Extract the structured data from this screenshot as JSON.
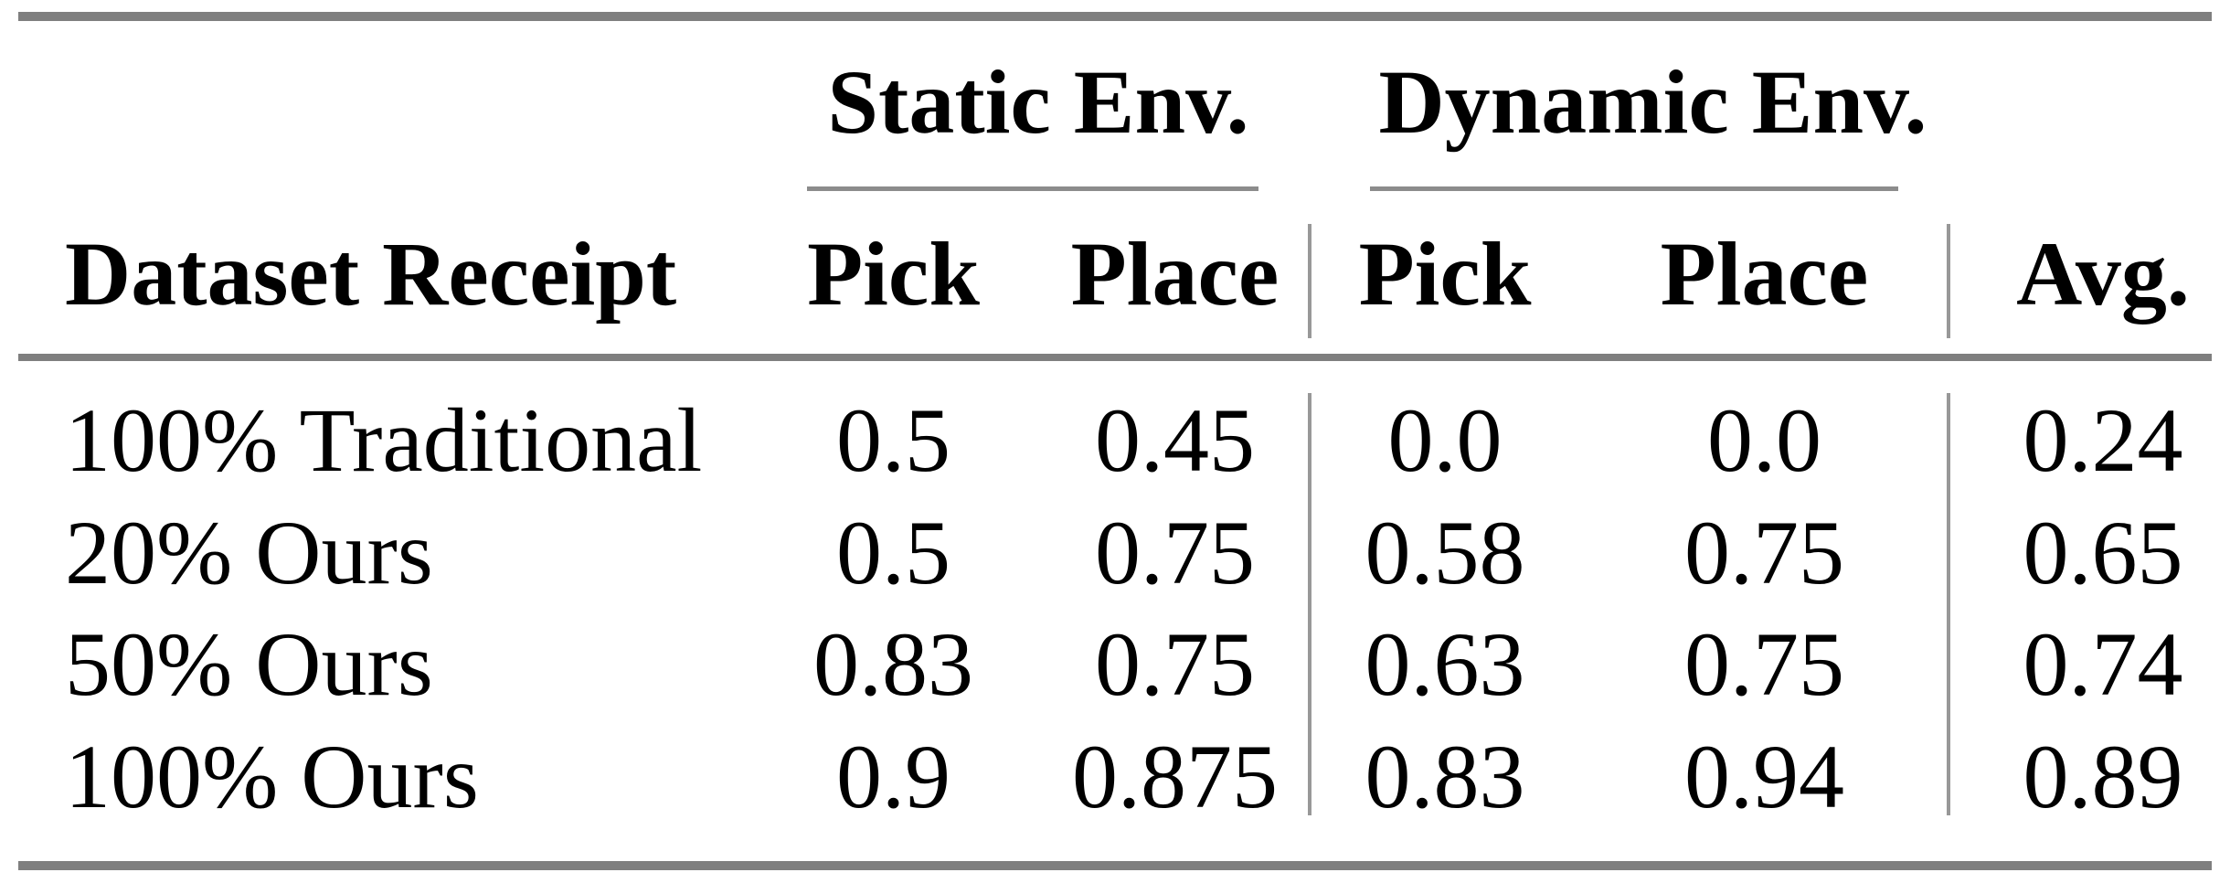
{
  "table": {
    "col_groups": [
      {
        "label": "Static Env."
      },
      {
        "label": "Dynamic Env."
      }
    ],
    "headers": {
      "row_label": "Dataset Receipt",
      "static_pick": "Pick",
      "static_place": "Place",
      "dynamic_pick": "Pick",
      "dynamic_place": "Place",
      "avg": "Avg."
    },
    "rows": [
      {
        "label": "100% Traditional",
        "static_pick": "0.5",
        "static_place": "0.45",
        "dynamic_pick": "0.0",
        "dynamic_place": "0.0",
        "avg": "0.24"
      },
      {
        "label": "20% Ours",
        "static_pick": "0.5",
        "static_place": "0.75",
        "dynamic_pick": "0.58",
        "dynamic_place": "0.75",
        "avg": "0.65"
      },
      {
        "label": "50% Ours",
        "static_pick": "0.83",
        "static_place": "0.75",
        "dynamic_pick": "0.63",
        "dynamic_place": "0.75",
        "avg": "0.74"
      },
      {
        "label": "100% Ours",
        "static_pick": "0.9",
        "static_place": "0.875",
        "dynamic_pick": "0.83",
        "dynamic_place": "0.94",
        "avg": "0.89"
      }
    ],
    "colors": {
      "text": "#000000",
      "background": "#ffffff",
      "heavy_rule": "#7f7f7f",
      "cmidrule": "#8c8c8c",
      "vline": "#989898"
    }
  },
  "chart_data": {
    "type": "table",
    "title": "",
    "column_groups": [
      {
        "label": "Static Env.",
        "columns": [
          "Pick",
          "Place"
        ]
      },
      {
        "label": "Dynamic Env.",
        "columns": [
          "Pick",
          "Place"
        ]
      }
    ],
    "columns": [
      "Dataset Receipt",
      "Static Env. Pick",
      "Static Env. Place",
      "Dynamic Env. Pick",
      "Dynamic Env. Place",
      "Avg."
    ],
    "rows": [
      [
        "100% Traditional",
        0.5,
        0.45,
        0.0,
        0.0,
        0.24
      ],
      [
        "20% Ours",
        0.5,
        0.75,
        0.58,
        0.75,
        0.65
      ],
      [
        "50% Ours",
        0.83,
        0.75,
        0.63,
        0.75,
        0.74
      ],
      [
        "100% Ours",
        0.9,
        0.875,
        0.83,
        0.94,
        0.89
      ]
    ]
  }
}
